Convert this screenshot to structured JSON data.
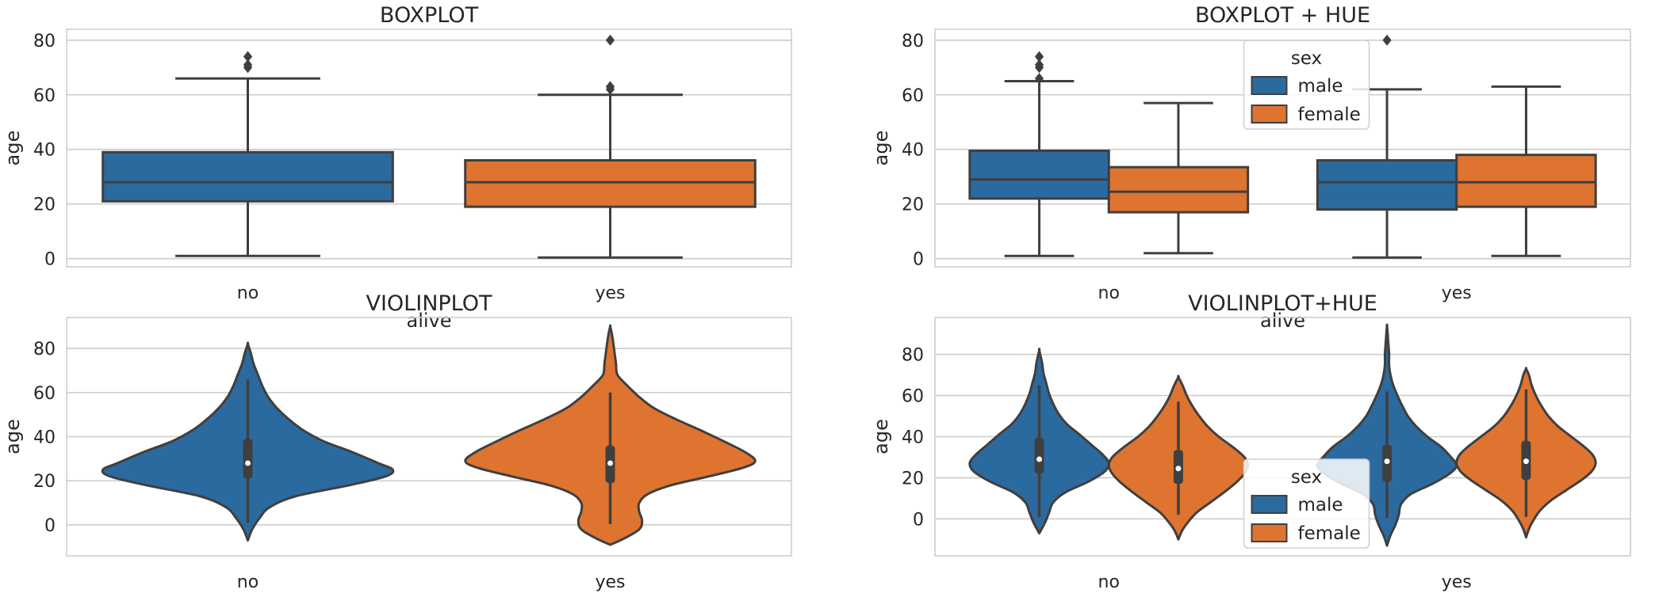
{
  "colors": {
    "male": "#2b6a9f",
    "female": "#df7430",
    "edge": "#3f3f3f",
    "grid": "#cccccc",
    "frame": "#cfcfcf"
  },
  "chart_data": [
    {
      "type": "box",
      "title": "BOXPLOT",
      "ylabel": "age",
      "xlabel": "alive",
      "categories": [
        "no",
        "yes"
      ],
      "ylim": [
        -3,
        84
      ],
      "yticks": [
        "0",
        "20",
        "40",
        "60",
        "80"
      ],
      "hue": false,
      "boxes": [
        {
          "category": "no",
          "series": "no",
          "color": "#2b6a9f",
          "q1": 21,
          "median": 28,
          "q3": 39,
          "whisker_low": 1,
          "whisker_high": 66,
          "outliers": [
            70,
            71,
            74
          ]
        },
        {
          "category": "yes",
          "series": "yes",
          "color": "#df7430",
          "q1": 19,
          "median": 28,
          "q3": 36,
          "whisker_low": 0.4,
          "whisker_high": 60,
          "outliers": [
            62,
            63,
            80
          ]
        }
      ]
    },
    {
      "type": "box",
      "title": "BOXPLOT + HUE",
      "ylabel": "age",
      "xlabel": "alive",
      "categories": [
        "no",
        "yes"
      ],
      "ylim": [
        -3,
        84
      ],
      "yticks": [
        "0",
        "20",
        "40",
        "60",
        "80"
      ],
      "hue": true,
      "legend": {
        "title": "sex",
        "entries": [
          "male",
          "female"
        ],
        "position": "upper-center"
      },
      "boxes": [
        {
          "category": "no",
          "series": "male",
          "color": "#2b6a9f",
          "q1": 22,
          "median": 29,
          "q3": 39.5,
          "whisker_low": 1,
          "whisker_high": 65,
          "outliers": [
            66,
            70,
            71,
            74
          ]
        },
        {
          "category": "no",
          "series": "female",
          "color": "#df7430",
          "q1": 17,
          "median": 24.5,
          "q3": 33.5,
          "whisker_low": 2,
          "whisker_high": 57,
          "outliers": []
        },
        {
          "category": "yes",
          "series": "male",
          "color": "#2b6a9f",
          "q1": 18,
          "median": 28,
          "q3": 36,
          "whisker_low": 0.4,
          "whisker_high": 62,
          "outliers": [
            80
          ]
        },
        {
          "category": "yes",
          "series": "female",
          "color": "#df7430",
          "q1": 19,
          "median": 28,
          "q3": 38,
          "whisker_low": 1,
          "whisker_high": 63,
          "outliers": []
        }
      ]
    },
    {
      "type": "violin",
      "title": "VIOLINPLOT",
      "ylabel": "age",
      "xlabel": "",
      "categories": [
        "no",
        "yes"
      ],
      "ylim": [
        -14,
        94
      ],
      "yticks": [
        "0",
        "20",
        "40",
        "60",
        "80"
      ],
      "hue": false,
      "violins": [
        {
          "category": "no",
          "series": "no",
          "color": "#2b6a9f",
          "y_min": -7,
          "y_max": 82,
          "profile": [
            [
              -7,
              0.0
            ],
            [
              -2,
              0.03
            ],
            [
              3,
              0.08
            ],
            [
              8,
              0.15
            ],
            [
              13,
              0.33
            ],
            [
              18,
              0.7
            ],
            [
              22,
              0.95
            ],
            [
              25,
              1.0
            ],
            [
              28,
              0.9
            ],
            [
              33,
              0.72
            ],
            [
              38,
              0.52
            ],
            [
              43,
              0.38
            ],
            [
              48,
              0.28
            ],
            [
              53,
              0.2
            ],
            [
              58,
              0.14
            ],
            [
              63,
              0.1
            ],
            [
              68,
              0.07
            ],
            [
              73,
              0.04
            ],
            [
              78,
              0.02
            ],
            [
              82,
              0.0
            ]
          ],
          "q1": 21,
          "median": 28,
          "q3": 39,
          "whisker_low": 1,
          "whisker_high": 66
        },
        {
          "category": "yes",
          "series": "yes",
          "color": "#df7430",
          "y_min": -9,
          "y_max": 90,
          "profile": [
            [
              -9,
              0.0
            ],
            [
              -6,
              0.1
            ],
            [
              -2,
              0.2
            ],
            [
              2,
              0.22
            ],
            [
              6,
              0.2
            ],
            [
              10,
              0.2
            ],
            [
              14,
              0.26
            ],
            [
              18,
              0.42
            ],
            [
              22,
              0.68
            ],
            [
              26,
              0.92
            ],
            [
              29,
              1.0
            ],
            [
              33,
              0.93
            ],
            [
              38,
              0.78
            ],
            [
              43,
              0.62
            ],
            [
              48,
              0.45
            ],
            [
              53,
              0.3
            ],
            [
              58,
              0.2
            ],
            [
              63,
              0.12
            ],
            [
              68,
              0.05
            ],
            [
              73,
              0.04
            ],
            [
              78,
              0.03
            ],
            [
              83,
              0.02
            ],
            [
              87,
              0.01
            ],
            [
              90,
              0.0
            ]
          ],
          "q1": 19,
          "median": 28,
          "q3": 36,
          "whisker_low": 0.4,
          "whisker_high": 60
        }
      ]
    },
    {
      "type": "violin",
      "title": "VIOLINPLOT+HUE",
      "ylabel": "age",
      "xlabel": "",
      "categories": [
        "no",
        "yes"
      ],
      "ylim": [
        -18,
        98
      ],
      "yticks": [
        "0",
        "20",
        "40",
        "60",
        "80"
      ],
      "hue": true,
      "legend": {
        "title": "sex",
        "entries": [
          "male",
          "female"
        ],
        "position": "lower-center"
      },
      "violins": [
        {
          "category": "no",
          "series": "male",
          "color": "#2b6a9f",
          "y_min": -7,
          "y_max": 82,
          "profile": [
            [
              -7,
              0.0
            ],
            [
              -2,
              0.08
            ],
            [
              3,
              0.14
            ],
            [
              8,
              0.2
            ],
            [
              13,
              0.38
            ],
            [
              18,
              0.7
            ],
            [
              23,
              0.94
            ],
            [
              27,
              1.0
            ],
            [
              31,
              0.92
            ],
            [
              36,
              0.75
            ],
            [
              41,
              0.58
            ],
            [
              46,
              0.4
            ],
            [
              51,
              0.28
            ],
            [
              56,
              0.2
            ],
            [
              61,
              0.14
            ],
            [
              66,
              0.1
            ],
            [
              71,
              0.06
            ],
            [
              76,
              0.04
            ],
            [
              82,
              0.0
            ]
          ],
          "q1": 22,
          "median": 29,
          "q3": 39.5,
          "whisker_low": 1,
          "whisker_high": 65
        },
        {
          "category": "no",
          "series": "female",
          "color": "#df7430",
          "y_min": -10,
          "y_max": 69,
          "profile": [
            [
              -10,
              0.0
            ],
            [
              -6,
              0.05
            ],
            [
              -2,
              0.13
            ],
            [
              3,
              0.26
            ],
            [
              8,
              0.46
            ],
            [
              13,
              0.66
            ],
            [
              18,
              0.84
            ],
            [
              22,
              0.95
            ],
            [
              26,
              1.0
            ],
            [
              30,
              0.95
            ],
            [
              35,
              0.78
            ],
            [
              40,
              0.58
            ],
            [
              45,
              0.42
            ],
            [
              50,
              0.3
            ],
            [
              55,
              0.2
            ],
            [
              60,
              0.12
            ],
            [
              65,
              0.06
            ],
            [
              69,
              0.0
            ]
          ],
          "q1": 17,
          "median": 24.5,
          "q3": 33.5,
          "whisker_low": 2,
          "whisker_high": 57
        },
        {
          "category": "yes",
          "series": "male",
          "color": "#2b6a9f",
          "y_min": -13,
          "y_max": 94,
          "profile": [
            [
              -13,
              0.0
            ],
            [
              -8,
              0.05
            ],
            [
              -3,
              0.12
            ],
            [
              2,
              0.17
            ],
            [
              7,
              0.2
            ],
            [
              12,
              0.34
            ],
            [
              17,
              0.65
            ],
            [
              22,
              0.9
            ],
            [
              26,
              1.0
            ],
            [
              30,
              0.92
            ],
            [
              35,
              0.78
            ],
            [
              40,
              0.58
            ],
            [
              45,
              0.42
            ],
            [
              50,
              0.3
            ],
            [
              55,
              0.22
            ],
            [
              60,
              0.15
            ],
            [
              65,
              0.09
            ],
            [
              70,
              0.05
            ],
            [
              75,
              0.03
            ],
            [
              80,
              0.03
            ],
            [
              85,
              0.02
            ],
            [
              90,
              0.01
            ],
            [
              94,
              0.0
            ]
          ],
          "q1": 18,
          "median": 28,
          "q3": 36,
          "whisker_low": 0.4,
          "whisker_high": 62
        },
        {
          "category": "yes",
          "series": "female",
          "color": "#df7430",
          "y_min": -9,
          "y_max": 73,
          "profile": [
            [
              -9,
              0.0
            ],
            [
              -5,
              0.04
            ],
            [
              -1,
              0.1
            ],
            [
              4,
              0.2
            ],
            [
              9,
              0.36
            ],
            [
              14,
              0.58
            ],
            [
              19,
              0.8
            ],
            [
              23,
              0.94
            ],
            [
              27,
              1.0
            ],
            [
              31,
              0.96
            ],
            [
              35,
              0.84
            ],
            [
              40,
              0.65
            ],
            [
              45,
              0.46
            ],
            [
              50,
              0.32
            ],
            [
              55,
              0.22
            ],
            [
              60,
              0.14
            ],
            [
              65,
              0.08
            ],
            [
              70,
              0.04
            ],
            [
              73,
              0.0
            ]
          ],
          "q1": 19,
          "median": 28,
          "q3": 38,
          "whisker_low": 1,
          "whisker_high": 63
        }
      ]
    }
  ]
}
